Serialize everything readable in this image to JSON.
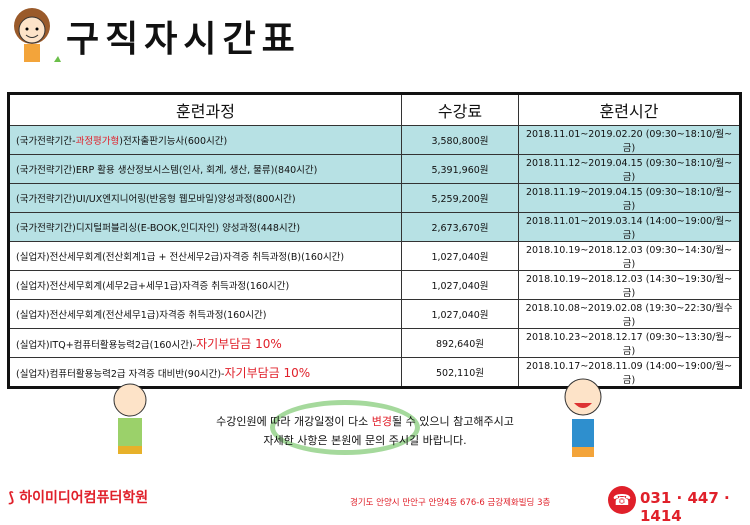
{
  "title": "구직자시간표",
  "table": {
    "headers": [
      "훈련과정",
      "수강료",
      "훈련시간"
    ],
    "rows": [
      {
        "course_pre": "(국가전략기간-",
        "course_red": "과정평가형",
        "course_post": ")전자출판기능사(600시간)",
        "fee": "3,580,800원",
        "time": "2018.11.01~2019.02.20 (09:30~18:10/월~금)",
        "highlight": true
      },
      {
        "course_pre": "(국가전략기간)ERP 활용 생산정보시스템(인사, 회계, 생산, 물류)(840시간)",
        "course_red": "",
        "course_post": "",
        "fee": "5,391,960원",
        "time": "2018.11.12~2019.04.15 (09:30~18:10/월~금)",
        "highlight": true
      },
      {
        "course_pre": "(국가전략기간)UI/UX엔지니어링(반응형 웹모바일)양성과정(800시간)",
        "course_red": "",
        "course_post": "",
        "fee": "5,259,200원",
        "time": "2018.11.19~2019.04.15 (09:30~18:10/월~금)",
        "highlight": true
      },
      {
        "course_pre": "(국가전략기간)디지털퍼블리싱(E-BOOK,인디자인) 양성과정(448시간)",
        "course_red": "",
        "course_post": "",
        "fee": "2,673,670원",
        "time": "2018.11.01~2019.03.14 (14:00~19:00/월~금)",
        "highlight": true
      },
      {
        "course_pre": "(실업자)전산세무회계(전산회계1급 + 전산세무2급)자격증 취득과정(B)(160시간)",
        "course_red": "",
        "course_post": "",
        "fee": "1,027,040원",
        "time": "2018.10.19~2018.12.03 (09:30~14:30/월~금)",
        "highlight": false
      },
      {
        "course_pre": "(실업자)전산세무회계(세무2급+세무1급)자격증 취득과정(160시간)",
        "course_red": "",
        "course_post": "",
        "fee": "1,027,040원",
        "time": "2018.10.19~2018.12.03 (14:30~19:30/월~금)",
        "highlight": false
      },
      {
        "course_pre": "(실업자)전산세무회계(전산세무1급)자격증 취득과정(160시간)",
        "course_red": "",
        "course_post": "",
        "fee": "1,027,040원",
        "time": "2018.10.08~2019.02.08 (19:30~22:30/월수금)",
        "highlight": false
      },
      {
        "course_pre": "(실업자)ITQ+컴퓨터활용능력2급(160시간)-",
        "course_big": "자기부담금 10%",
        "fee": "892,640원",
        "time": "2018.10.23~2018.12.17 (09:30~13:30/월~금)",
        "highlight": false
      },
      {
        "course_pre": "(실업자)컴퓨터활용능력2급 자격증 대비반(90시간)-",
        "course_big": "자기부담금 10%",
        "fee": "502,110원",
        "time": "2018.10.17~2018.11.09 (14:00~19:00/월~금)",
        "highlight": false
      }
    ]
  },
  "notice": {
    "line1_pre": "수강인원에 따라 개강일정이 다소 ",
    "line1_red": "변경",
    "line1_post": "될 수 있으니 참고해주시고",
    "line2": "자세한 사항은 본원에 문의 주시길 바랍니다."
  },
  "footer": {
    "logo": "하이미디어컴퓨터학원",
    "address": "경기도 안양시 만안구 안양4동 676-6 금강제화빌딩 3층",
    "phone": "031 · 447 · 1414"
  },
  "colors": {
    "highlight": "#b7e1e4",
    "accent": "#e0202a"
  }
}
